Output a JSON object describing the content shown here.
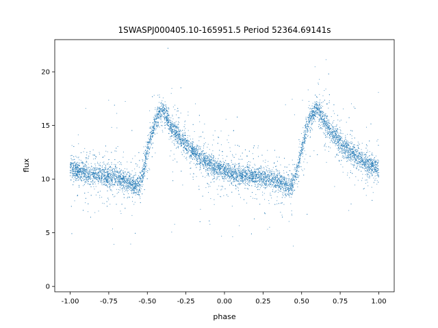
{
  "chart_data": {
    "type": "scatter",
    "title": "1SWASPJ000405.10-165951.5 Period 52364.69141s",
    "xlabel": "phase",
    "ylabel": "flux",
    "xlim": [
      -1.1,
      1.1
    ],
    "ylim": [
      -0.5,
      23.0
    ],
    "xticks": [
      "-1.00",
      "-0.75",
      "-0.50",
      "-0.25",
      "0.00",
      "0.25",
      "0.50",
      "0.75",
      "1.00"
    ],
    "xtick_values": [
      -1.0,
      -0.75,
      -0.5,
      -0.25,
      0.0,
      0.25,
      0.5,
      0.75,
      1.0
    ],
    "yticks": [
      "0",
      "5",
      "10",
      "15",
      "20"
    ],
    "ytick_values": [
      0,
      5,
      10,
      15,
      20
    ],
    "grid": false,
    "marker_color": "#1f77b4",
    "series": [
      {
        "trend_x": [
          -1.0,
          -0.9,
          -0.8,
          -0.7,
          -0.65,
          -0.6,
          -0.57,
          -0.55,
          -0.52,
          -0.5,
          -0.47,
          -0.45,
          -0.42,
          -0.4,
          -0.38,
          -0.35,
          -0.3,
          -0.25,
          -0.2,
          -0.15,
          -0.1,
          -0.05,
          0.0,
          0.05,
          0.1,
          0.15,
          0.2,
          0.25,
          0.3,
          0.35,
          0.4,
          0.43,
          0.45,
          0.48,
          0.5,
          0.53,
          0.55,
          0.58,
          0.6,
          0.62,
          0.65,
          0.7,
          0.75,
          0.8,
          0.85,
          0.9,
          0.95,
          1.0
        ],
        "trend_y": [
          11.0,
          10.6,
          10.3,
          10.2,
          9.9,
          9.6,
          9.3,
          9.6,
          10.8,
          12.6,
          14.2,
          15.3,
          16.2,
          16.5,
          16.0,
          15.0,
          14.0,
          13.2,
          12.5,
          12.0,
          11.4,
          11.0,
          10.7,
          10.5,
          10.3,
          10.3,
          10.2,
          10.2,
          10.0,
          9.8,
          9.4,
          9.3,
          9.8,
          11.2,
          12.8,
          14.5,
          15.4,
          16.1,
          16.5,
          16.2,
          15.2,
          14.2,
          13.4,
          12.7,
          12.2,
          11.7,
          11.3,
          11.0
        ],
        "n_points": 9000
      }
    ]
  }
}
